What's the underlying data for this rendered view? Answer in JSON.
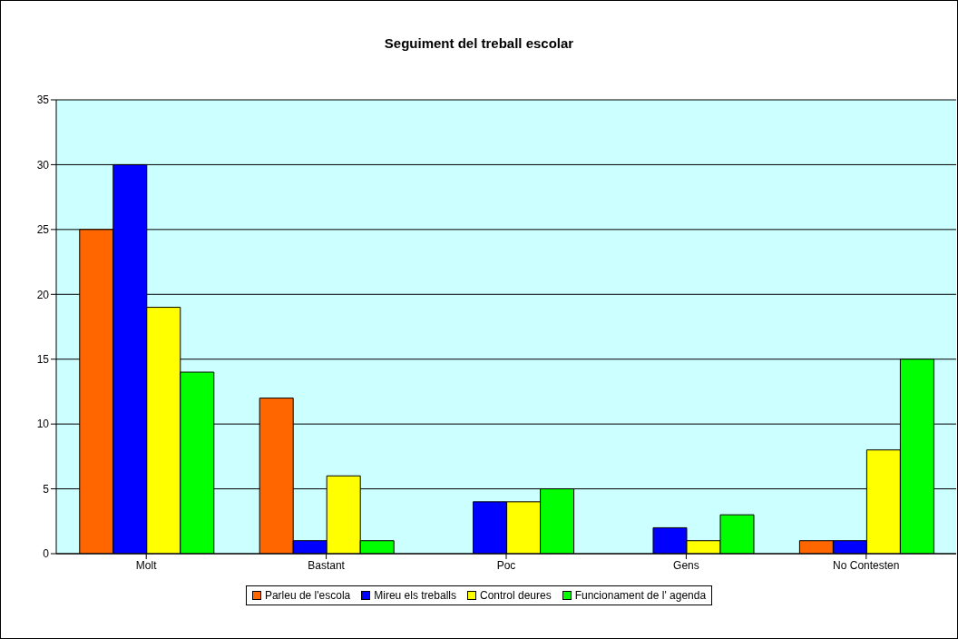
{
  "chart_data": {
    "type": "bar",
    "title": "Seguiment del treball escolar",
    "categories": [
      "Molt",
      "Bastant",
      "Poc",
      "Gens",
      "No Contesten"
    ],
    "series": [
      {
        "name": "Parleu de l'escola",
        "color": "#ff6600",
        "values": [
          25,
          12,
          0,
          0,
          1
        ]
      },
      {
        "name": "Mireu els treballs",
        "color": "#0000ff",
        "values": [
          30,
          1,
          4,
          2,
          1
        ]
      },
      {
        "name": "Control deures",
        "color": "#ffff00",
        "values": [
          19,
          6,
          4,
          1,
          8
        ]
      },
      {
        "name": "Funcionament de l' agenda",
        "color": "#00ff00",
        "values": [
          14,
          1,
          5,
          3,
          15
        ]
      }
    ],
    "ylim": [
      0,
      35
    ],
    "yticks": [
      0,
      5,
      10,
      15,
      20,
      25,
      30,
      35
    ],
    "grid": "y",
    "legend": "bottom"
  }
}
